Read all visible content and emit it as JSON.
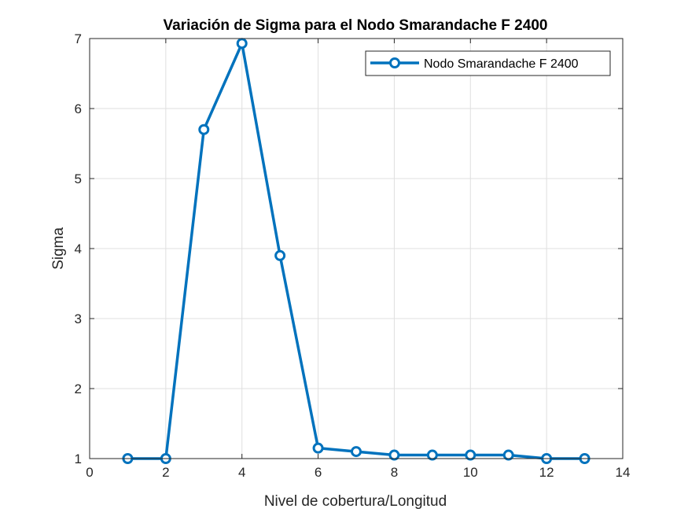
{
  "chart_data": {
    "type": "line",
    "title": "Variación de Sigma para el Nodo Smarandache F 2400",
    "xlabel": "Nivel de cobertura/Longitud",
    "ylabel": "Sigma",
    "xlim": [
      0,
      14
    ],
    "ylim": [
      1,
      7
    ],
    "xticks": [
      0,
      2,
      4,
      6,
      8,
      10,
      12,
      14
    ],
    "yticks": [
      1,
      2,
      3,
      4,
      5,
      6,
      7
    ],
    "grid": true,
    "legend_position": "top-right",
    "series": [
      {
        "name": "Nodo Smarandache F 2400",
        "color": "#0072BD",
        "marker": "circle",
        "x": [
          1,
          2,
          3,
          4,
          5,
          6,
          7,
          8,
          9,
          10,
          11,
          12,
          13
        ],
        "y": [
          1.0,
          1.0,
          5.7,
          6.93,
          3.9,
          1.15,
          1.1,
          1.05,
          1.05,
          1.05,
          1.05,
          1.0,
          1.0
        ]
      }
    ]
  }
}
